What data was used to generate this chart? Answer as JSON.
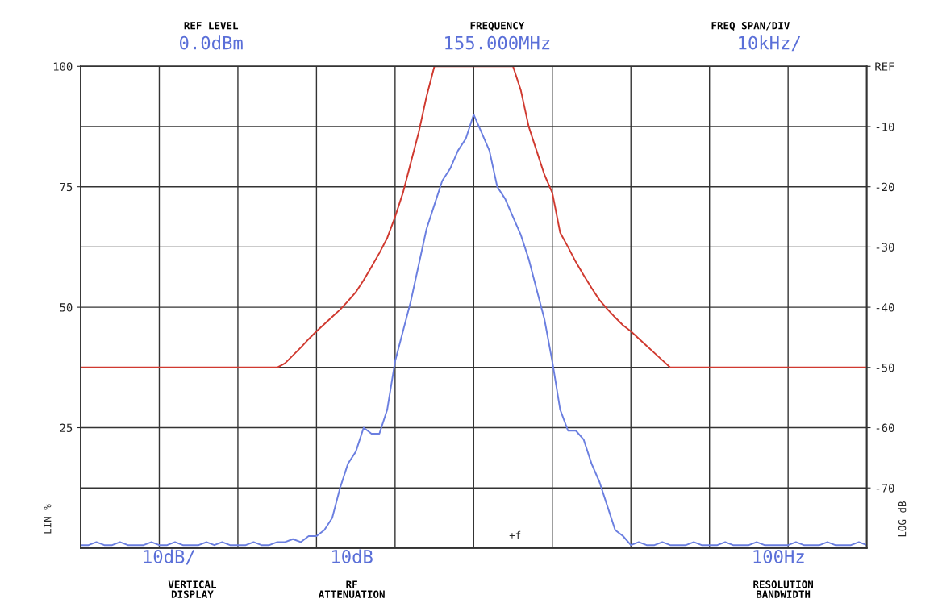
{
  "chart_data": {
    "type": "line",
    "categories": [
      null,
      null,
      null,
      null,
      null,
      null,
      null,
      null,
      null,
      null,
      null,
      null,
      null,
      null,
      null,
      null,
      null,
      null,
      null,
      null,
      null,
      null,
      null,
      null,
      null,
      null,
      null,
      null,
      null,
      null,
      null,
      null,
      null,
      null,
      null,
      null,
      null,
      null,
      null,
      null,
      null,
      null,
      null,
      null,
      null,
      null,
      null,
      null,
      null,
      null,
      null,
      null,
      null,
      null,
      null,
      null,
      null,
      null,
      null,
      null,
      null,
      null,
      null,
      null,
      null,
      null,
      null,
      null,
      null,
      null,
      null,
      null,
      null,
      null,
      null,
      null,
      null,
      null,
      null,
      null,
      null,
      null,
      null,
      null,
      null,
      null,
      null,
      null,
      null,
      null,
      null,
      null,
      null,
      null,
      null,
      null,
      null,
      null,
      null,
      null,
      null
    ],
    "series": [
      {
        "color": "#d03a30",
        "axis": "y2",
        "values": [
          -50,
          -50,
          -50,
          -50,
          -50,
          -50,
          -50,
          -50,
          -50,
          -50,
          -50,
          -50,
          -50,
          -50,
          -50,
          -50,
          -50,
          -50,
          -50,
          -50,
          -50,
          -50,
          -50,
          -50,
          -50,
          -50,
          -49.3,
          -48,
          -46.7,
          -45.3,
          -44,
          -42.8,
          -41.6,
          -40.4,
          -39,
          -37.5,
          -35.5,
          -33.3,
          -31,
          -28.5,
          -25,
          -21,
          -16,
          -11,
          -5,
          0,
          null,
          null,
          null,
          null,
          null,
          null,
          null,
          null,
          null,
          0,
          -4,
          -10,
          -14,
          -18,
          -21,
          -27.6,
          -30,
          -32.5,
          -34.7,
          -36.8,
          -38.8,
          -40.3,
          -41.7,
          -43,
          -44,
          -45.2,
          -46.4,
          -47.6,
          -48.8,
          -50,
          -50,
          -50,
          -50,
          -50,
          -50,
          -50,
          -50,
          -50,
          -50,
          -50,
          -50,
          -50,
          -50,
          -50,
          -50,
          -50,
          -50,
          -50,
          -50,
          -50,
          -50,
          -50,
          -50,
          -50,
          -50
        ]
      },
      {
        "color": "#6b7fe0",
        "axis": "y2",
        "values": [
          -79.5,
          -79.5,
          -79,
          -79.5,
          -79.5,
          -79,
          -79.5,
          -79.5,
          -79.5,
          -79,
          -79.5,
          -79.5,
          -79,
          -79.5,
          -79.5,
          -79.5,
          -79,
          -79.5,
          -79,
          -79.5,
          -79.5,
          -79.5,
          -79,
          -79.5,
          -79.5,
          -79,
          -79,
          -78.5,
          -79,
          -78,
          -78,
          -77,
          -75,
          -70,
          -66,
          -64,
          -60,
          -61,
          -61,
          -57,
          -49,
          -44,
          -39,
          -33,
          -27,
          -23,
          -19,
          -17,
          -14,
          -12,
          -8,
          -11,
          -14,
          -20,
          -22,
          -25,
          -28,
          -32,
          -37,
          -42,
          -49,
          -57,
          -60.5,
          -60.5,
          -62,
          -66,
          -69,
          -73,
          -77,
          -78,
          -79.5,
          -79,
          -79.5,
          -79.5,
          -79,
          -79.5,
          -79.5,
          -79.5,
          -79,
          -79.5,
          -79.5,
          -79.5,
          -79,
          -79.5,
          -79.5,
          -79.5,
          -79,
          -79.5,
          -79.5,
          -79.5,
          -79.5,
          -79,
          -79.5,
          -79.5,
          -79.5,
          -79,
          -79.5,
          -79.5,
          -79.5,
          -79,
          -79.5
        ]
      }
    ],
    "ylabel": "LIN %",
    "y2label": "LOG dB",
    "ylim": [
      0,
      100
    ],
    "yticks": [
      100,
      75,
      50,
      25
    ],
    "y2lim": [
      -80,
      0
    ],
    "y2ticks": [
      {
        "value": 0,
        "label": "REF"
      },
      -10,
      -20,
      -30,
      -40,
      -50,
      -60,
      -70
    ],
    "grid": true,
    "annotations": [
      "REF LEVEL",
      "0.0dBm",
      "FREQUENCY",
      "155.000MHz",
      "FREQ SPAN/DIV",
      "10kHz/",
      "10dB/",
      "VERTICAL\nDISPLAY",
      "10dB",
      "RF\nATTENUATION",
      "100Hz",
      "RESOLUTION\nBANDWIDTH",
      "+f"
    ]
  }
}
